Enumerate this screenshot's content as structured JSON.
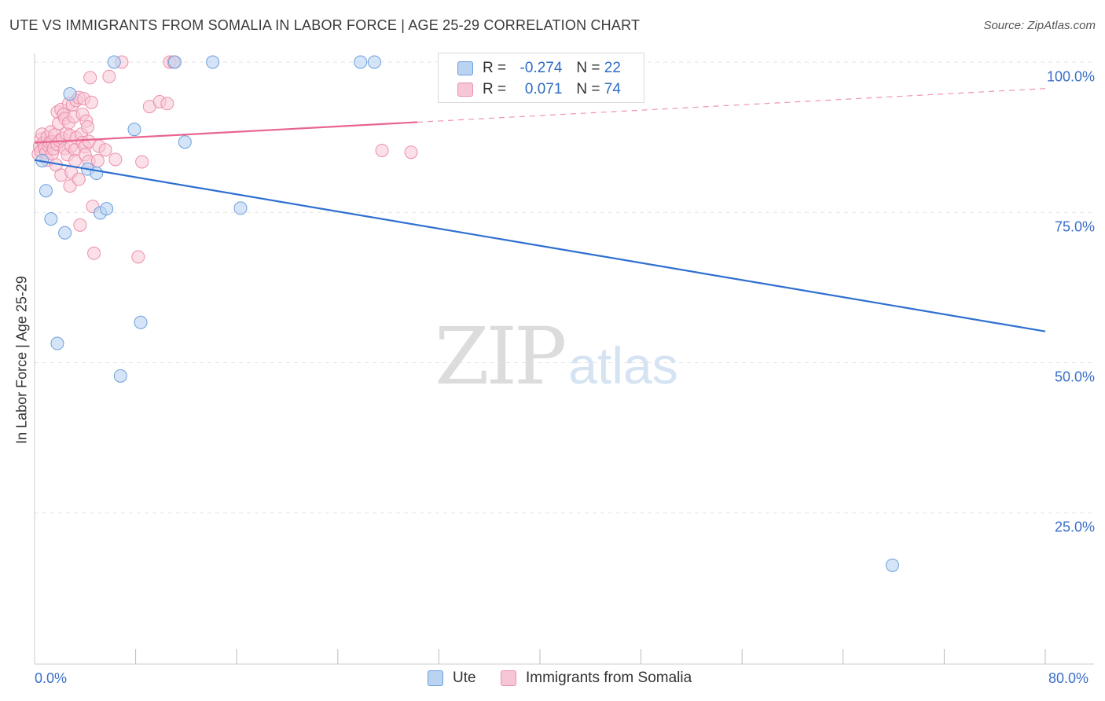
{
  "title": "UTE VS IMMIGRANTS FROM SOMALIA IN LABOR FORCE | AGE 25-29 CORRELATION CHART",
  "source": "Source: ZipAtlas.com",
  "watermark": {
    "zip": "ZIP",
    "atlas": "atlas"
  },
  "stats": {
    "ute": {
      "r_label": "R =",
      "r_value": "-0.274",
      "n_label": "N =",
      "n_value": "22"
    },
    "somalia": {
      "r_label": "R =",
      "r_value": "0.071",
      "n_label": "N =",
      "n_value": "74"
    }
  },
  "colors": {
    "ute_fill": "#b9d3f1",
    "ute_stroke": "#6c9fdc",
    "ute_line": "#2e6fd0",
    "somalia_fill": "#f7c6d6",
    "somalia_stroke": "#ec8fac",
    "somalia_line": "#e8658f",
    "axis_label": "#3a6fc9",
    "grid": "#e3e3e3"
  },
  "chart_data": {
    "type": "scatter",
    "title": "UTE VS IMMIGRANTS FROM SOMALIA IN LABOR FORCE | AGE 25-29 CORRELATION CHART",
    "xlabel": "",
    "ylabel": "In Labor Force | Age 25-29",
    "xlim": [
      0,
      80
    ],
    "ylim": [
      0,
      104
    ],
    "x_tick_labels": [
      "0.0%",
      "80.0%"
    ],
    "y_ticks": [
      25,
      50,
      75,
      100
    ],
    "y_tick_labels": [
      "25.0%",
      "50.0%",
      "75.0%",
      "100.0%"
    ],
    "grid": true,
    "legend": [
      {
        "name": "Ute"
      },
      {
        "name": "Immigrants from Somalia"
      }
    ],
    "series": [
      {
        "name": "Ute",
        "points": [
          [
            0.6,
            83.6
          ],
          [
            0.9,
            78.6
          ],
          [
            1.3,
            73.9
          ],
          [
            1.8,
            53.2
          ],
          [
            2.4,
            71.6
          ],
          [
            2.8,
            94.7
          ],
          [
            4.2,
            82.2
          ],
          [
            4.9,
            81.5
          ],
          [
            5.2,
            74.9
          ],
          [
            5.7,
            75.6
          ],
          [
            6.3,
            100
          ],
          [
            6.8,
            47.8
          ],
          [
            7.9,
            88.8
          ],
          [
            8.4,
            56.7
          ],
          [
            11.1,
            100
          ],
          [
            11.9,
            86.7
          ],
          [
            14.1,
            100
          ],
          [
            16.3,
            75.7
          ],
          [
            25.8,
            100
          ],
          [
            26.9,
            100
          ],
          [
            44.3,
            100
          ],
          [
            67.9,
            16.3
          ]
        ],
        "trend": {
          "x": [
            0,
            80
          ],
          "y": [
            83.7,
            55.2
          ]
        }
      },
      {
        "name": "Immigrants from Somalia",
        "points": [
          [
            0.3,
            84.7
          ],
          [
            0.4,
            86.0
          ],
          [
            0.5,
            87.2
          ],
          [
            0.5,
            85.2
          ],
          [
            0.6,
            88.0
          ],
          [
            0.7,
            86.5
          ],
          [
            0.8,
            85.7
          ],
          [
            0.9,
            84.9
          ],
          [
            1.0,
            87.5
          ],
          [
            1.0,
            83.7
          ],
          [
            1.1,
            86.1
          ],
          [
            1.2,
            86.6
          ],
          [
            1.3,
            88.4
          ],
          [
            1.4,
            84.8
          ],
          [
            1.4,
            86.8
          ],
          [
            1.5,
            85.6
          ],
          [
            1.6,
            87.9
          ],
          [
            1.7,
            82.9
          ],
          [
            1.8,
            86.3
          ],
          [
            1.8,
            91.7
          ],
          [
            1.9,
            89.8
          ],
          [
            2.0,
            86.9
          ],
          [
            2.1,
            92.1
          ],
          [
            2.1,
            81.2
          ],
          [
            2.2,
            87.3
          ],
          [
            2.3,
            91.3
          ],
          [
            2.4,
            90.6
          ],
          [
            2.4,
            85.6
          ],
          [
            2.5,
            88.1
          ],
          [
            2.6,
            84.6
          ],
          [
            2.7,
            93.1
          ],
          [
            2.7,
            89.9
          ],
          [
            2.8,
            87.8
          ],
          [
            2.8,
            79.4
          ],
          [
            2.9,
            86.0
          ],
          [
            2.9,
            81.7
          ],
          [
            3.0,
            92.9
          ],
          [
            3.1,
            90.9
          ],
          [
            3.2,
            85.4
          ],
          [
            3.2,
            83.6
          ],
          [
            3.3,
            93.6
          ],
          [
            3.3,
            87.4
          ],
          [
            3.5,
            94.1
          ],
          [
            3.5,
            80.5
          ],
          [
            3.6,
            72.9
          ],
          [
            3.7,
            88.0
          ],
          [
            3.8,
            86.6
          ],
          [
            3.8,
            91.3
          ],
          [
            3.9,
            93.9
          ],
          [
            4.0,
            85.9
          ],
          [
            4.0,
            84.6
          ],
          [
            4.1,
            90.2
          ],
          [
            4.2,
            89.2
          ],
          [
            4.3,
            83.5
          ],
          [
            4.3,
            86.8
          ],
          [
            4.4,
            97.4
          ],
          [
            4.5,
            93.3
          ],
          [
            4.6,
            76.0
          ],
          [
            4.7,
            68.2
          ],
          [
            5.0,
            83.6
          ],
          [
            5.1,
            86.0
          ],
          [
            5.6,
            85.4
          ],
          [
            5.9,
            97.6
          ],
          [
            6.4,
            83.8
          ],
          [
            6.9,
            100
          ],
          [
            8.2,
            67.6
          ],
          [
            8.5,
            83.4
          ],
          [
            9.1,
            92.6
          ],
          [
            9.9,
            93.4
          ],
          [
            10.5,
            93.1
          ],
          [
            10.7,
            100
          ],
          [
            11.0,
            100
          ],
          [
            27.5,
            85.3
          ],
          [
            29.8,
            85.0
          ]
        ],
        "trend": {
          "x": [
            0,
            80
          ],
          "y": [
            86.6,
            95.6
          ]
        },
        "trend_solid_until_x": 30.3
      }
    ]
  }
}
